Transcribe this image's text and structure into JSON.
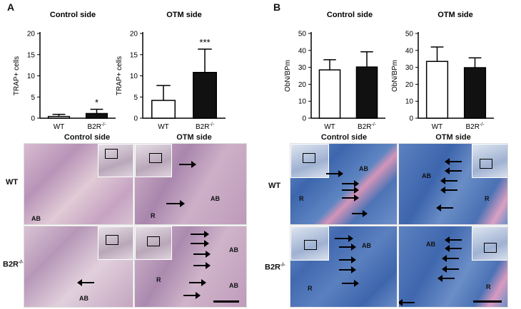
{
  "panels": {
    "a_letter": "A",
    "b_letter": "B"
  },
  "chart_data": [
    {
      "type": "bar",
      "title": "Control side",
      "ylabel": "TRAP+ cells",
      "categories": [
        "WT",
        "B2R-/-"
      ],
      "values": [
        0.4,
        1.1
      ],
      "errors": [
        0.5,
        1.0
      ],
      "annotations": [
        "",
        "*"
      ],
      "ylim": [
        0,
        20
      ],
      "yticks": [
        0,
        5,
        10,
        15,
        20
      ],
      "colors": [
        "#ffffff",
        "#111111"
      ]
    },
    {
      "type": "bar",
      "title": "OTM side",
      "ylabel": "TRAP+ cells",
      "categories": [
        "WT",
        "B2R-/-"
      ],
      "values": [
        4.2,
        10.8
      ],
      "errors": [
        3.5,
        5.5
      ],
      "annotations": [
        "",
        "***"
      ],
      "ylim": [
        0,
        20
      ],
      "yticks": [
        0,
        5,
        10,
        15,
        20
      ],
      "colors": [
        "#ffffff",
        "#111111"
      ]
    },
    {
      "type": "bar",
      "title": "Control side",
      "ylabel": "ObN/BPm",
      "categories": [
        "WT",
        "B2R-/-"
      ],
      "values": [
        28.5,
        30.2
      ],
      "errors": [
        6.0,
        9.0
      ],
      "annotations": [
        "",
        ""
      ],
      "ylim": [
        0,
        50
      ],
      "yticks": [
        0,
        10,
        20,
        30,
        40,
        50
      ],
      "colors": [
        "#ffffff",
        "#111111"
      ]
    },
    {
      "type": "bar",
      "title": "OTM side",
      "ylabel": "ObN/BPm",
      "categories": [
        "WT",
        "B2R-/-"
      ],
      "values": [
        33.5,
        29.8
      ],
      "errors": [
        8.5,
        5.8
      ],
      "annotations": [
        "",
        ""
      ],
      "ylim": [
        0,
        50
      ],
      "yticks": [
        0,
        10,
        20,
        30,
        40,
        50
      ],
      "colors": [
        "#ffffff",
        "#111111"
      ]
    }
  ],
  "histology": {
    "a_col_control": "Control side",
    "a_col_otm": "OTM side",
    "b_col_control": "Control side",
    "b_col_otm": "OTM side",
    "row_wt": "WT",
    "row_b2r": "B2R-/-",
    "labels": {
      "ab": "AB",
      "r": "R"
    },
    "colors": {
      "he_bg": "#c9a9c4",
      "he_dark": "#8d6a98",
      "trichrome_bg": "#4a73b8",
      "trichrome_pink": "#d98ab0"
    }
  }
}
